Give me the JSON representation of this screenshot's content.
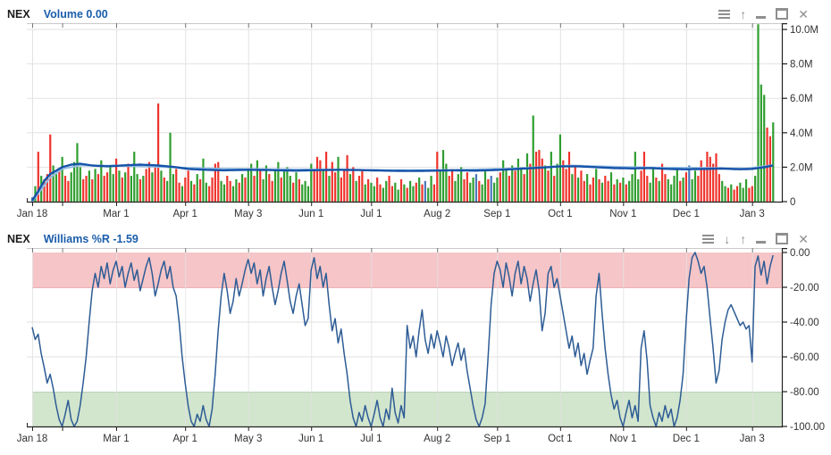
{
  "panels": [
    {
      "symbol": "NEX",
      "study": "Volume 0.00",
      "toolbar": [
        "menu",
        "move-up",
        "minimize",
        "maximize",
        "close"
      ]
    },
    {
      "symbol": "NEX",
      "study": "Williams %R -1.59",
      "toolbar": [
        "menu",
        "move-down",
        "move-up",
        "minimize",
        "maximize",
        "close"
      ]
    }
  ],
  "icons": {
    "up_glyph": "↑",
    "down_glyph": "↓",
    "close_glyph": "✕"
  },
  "colors": {
    "up_bar": "#2f9e2f",
    "down_bar": "#ef342c",
    "neutral_bar": "#4a77bb",
    "ma_line": "#1553a8",
    "ma2_line": "#96bde4",
    "wr_line": "#2d5c95",
    "overbought_band": "#f6c5c7",
    "oversold_band": "#d2e5cd",
    "band_edge_red": "#eab3b5",
    "band_edge_green": "#b9d2b4",
    "grid": "#e2e2e2",
    "axis": "#222222",
    "tick_text": "#333333",
    "study_text": "#1a5dab",
    "icon": "#8f8f8f"
  },
  "chart_data": [
    {
      "type": "bar",
      "title": "Volume",
      "current_value": "0.00",
      "ylim": [
        0,
        10.5
      ],
      "unit": "millions",
      "legend_position": "none",
      "grid": true,
      "y_ticks": {
        "values": [
          10,
          8,
          6,
          4,
          2,
          0
        ],
        "labels": [
          "10.0M",
          "8.0M",
          "6.0M",
          "4.0M",
          "2.0M",
          "0"
        ]
      },
      "x_ticks": {
        "indices": [
          0,
          28,
          51,
          72,
          93,
          113,
          135,
          155,
          176,
          197,
          218,
          240
        ],
        "labels": [
          "Jan 18",
          "Mar 1",
          "Apr 1",
          "May 3",
          "Jun 1",
          "Jul 1",
          "Aug 2",
          "Sep 1",
          "Oct 1",
          "Nov 1",
          "Dec 1",
          "Jan 3"
        ],
        "minor": [
          10
        ]
      },
      "bars": {
        "values": [
          0.25,
          0.9,
          2.9,
          1.5,
          1.3,
          1.6,
          3.9,
          2.1,
          1.6,
          1.9,
          2.6,
          1.5,
          1.2,
          1.7,
          2.3,
          3.4,
          2.0,
          1.3,
          1.5,
          1.8,
          1.3,
          1.9,
          1.6,
          2.4,
          1.5,
          1.7,
          2.1,
          1.6,
          2.5,
          1.8,
          1.4,
          1.7,
          2.2,
          1.5,
          2.9,
          1.6,
          1.3,
          1.5,
          1.9,
          2.3,
          1.7,
          2.1,
          5.7,
          1.8,
          1.4,
          1.2,
          4.0,
          1.6,
          1.9,
          1.1,
          0.9,
          1.4,
          1.8,
          1.2,
          1.0,
          1.6,
          1.3,
          2.5,
          1.1,
          0.9,
          1.4,
          2.2,
          2.3,
          1.2,
          1.0,
          1.5,
          1.2,
          0.9,
          1.3,
          1.1,
          1.6,
          1.4,
          1.8,
          2.2,
          1.5,
          2.4,
          1.9,
          1.3,
          2.1,
          1.6,
          1.2,
          1.9,
          2.3,
          1.4,
          1.8,
          2.0,
          1.5,
          1.1,
          1.7,
          1.3,
          1.0,
          1.2,
          0.9,
          2.2,
          1.8,
          2.6,
          2.4,
          1.9,
          2.9,
          1.5,
          2.3,
          1.7,
          2.6,
          1.4,
          1.9,
          2.7,
          1.6,
          2.0,
          1.2,
          1.5,
          1.8,
          1.0,
          1.3,
          1.1,
          0.9,
          1.4,
          1.0,
          0.8,
          1.2,
          1.5,
          0.9,
          1.1,
          0.7,
          1.3,
          1.0,
          0.8,
          1.2,
          0.9,
          1.1,
          1.4,
          1.0,
          1.2,
          0.8,
          1.5,
          1.0,
          2.9,
          1.8,
          3.0,
          2.2,
          1.5,
          1.9,
          1.2,
          1.6,
          2.0,
          1.3,
          1.7,
          1.1,
          1.4,
          1.6,
          1.2,
          1.0,
          1.8,
          1.3,
          1.5,
          1.1,
          1.4,
          1.7,
          2.4,
          1.9,
          1.5,
          2.1,
          1.8,
          2.5,
          2.0,
          1.6,
          2.8,
          2.2,
          5.0,
          2.9,
          3.0,
          2.5,
          2.1,
          1.8,
          2.9,
          1.5,
          2.2,
          3.9,
          2.4,
          1.9,
          2.9,
          1.6,
          2.1,
          1.4,
          1.8,
          1.2,
          1.6,
          1.0,
          1.4,
          1.9,
          1.3,
          1.1,
          1.5,
          1.2,
          1.7,
          1.0,
          1.3,
          1.1,
          1.4,
          1.0,
          1.2,
          1.6,
          2.9,
          1.3,
          1.8,
          2.9,
          1.5,
          1.1,
          1.9,
          1.4,
          1.2,
          2.2,
          1.6,
          1.3,
          1.0,
          1.5,
          1.9,
          1.2,
          1.4,
          1.7,
          2.1,
          1.3,
          1.8,
          1.5,
          2.4,
          1.9,
          2.9,
          2.6,
          2.2,
          2.8,
          1.6,
          1.2,
          0.9,
          0.8,
          1.0,
          0.7,
          0.9,
          1.1,
          0.8,
          1.3,
          0.8,
          0.9,
          1.5,
          10.3,
          6.8,
          6.2,
          4.3,
          3.8,
          4.6
        ],
        "colors": "bgrgrrrggrgrrggggrrgrgrgrrggrgrgrgggrgrrgrrgrgggrrgrrgrgrggrrrrggrrggrgrggrgrggrrggrgggrgrggggrrrgrgrrgrrrgrgrrgrggrrggrrggrgrggrgrbggrrgggrrgggrrggbrggrbggrggrgrggrgrgrrrgrgrggrrrgrgrrgrrgrgrrgrgrgrggggrrrggrgrrggggrgrbggrrrrrrrrggrgrrgggrrggggrrg"
      },
      "ma_points": [
        [
          0,
          0.05
        ],
        [
          2,
          0.6
        ],
        [
          4,
          1.2
        ],
        [
          6,
          1.6
        ],
        [
          8,
          1.8
        ],
        [
          10,
          2.0
        ],
        [
          13,
          2.15
        ],
        [
          16,
          2.2
        ],
        [
          20,
          2.1
        ],
        [
          25,
          2.05
        ],
        [
          30,
          2.1
        ],
        [
          36,
          2.15
        ],
        [
          42,
          2.1
        ],
        [
          48,
          2.0
        ],
        [
          52,
          1.9
        ],
        [
          58,
          1.85
        ],
        [
          64,
          1.82
        ],
        [
          72,
          1.85
        ],
        [
          80,
          1.83
        ],
        [
          88,
          1.8
        ],
        [
          95,
          1.83
        ],
        [
          103,
          1.85
        ],
        [
          110,
          1.83
        ],
        [
          118,
          1.8
        ],
        [
          126,
          1.78
        ],
        [
          134,
          1.8
        ],
        [
          140,
          1.82
        ],
        [
          148,
          1.8
        ],
        [
          156,
          1.85
        ],
        [
          162,
          1.9
        ],
        [
          167,
          1.95
        ],
        [
          172,
          2.0
        ],
        [
          176,
          2.05
        ],
        [
          182,
          2.05
        ],
        [
          188,
          2.0
        ],
        [
          194,
          1.95
        ],
        [
          200,
          1.93
        ],
        [
          206,
          1.95
        ],
        [
          212,
          1.9
        ],
        [
          218,
          1.88
        ],
        [
          224,
          1.9
        ],
        [
          230,
          1.92
        ],
        [
          236,
          1.88
        ],
        [
          240,
          1.9
        ],
        [
          244,
          2.0
        ],
        [
          247,
          2.1
        ]
      ],
      "ma2_points": [
        [
          0,
          0.0
        ],
        [
          3,
          0.7
        ],
        [
          6,
          1.4
        ],
        [
          10,
          1.9
        ],
        [
          16,
          2.1
        ],
        [
          30,
          2.08
        ],
        [
          45,
          2.0
        ],
        [
          60,
          1.92
        ],
        [
          80,
          1.88
        ],
        [
          100,
          1.86
        ],
        [
          120,
          1.82
        ],
        [
          140,
          1.84
        ],
        [
          160,
          1.92
        ],
        [
          172,
          2.02
        ],
        [
          180,
          2.1
        ],
        [
          195,
          2.02
        ],
        [
          210,
          1.97
        ],
        [
          225,
          1.96
        ],
        [
          238,
          1.92
        ],
        [
          244,
          2.05
        ],
        [
          247,
          2.12
        ]
      ]
    },
    {
      "type": "line",
      "title": "Williams %R",
      "current_value": -1.59,
      "ylim": [
        -100,
        0
      ],
      "grid": true,
      "bands": {
        "overbought": [
          0,
          -20
        ],
        "oversold": [
          -80,
          -100
        ]
      },
      "y_ticks": {
        "values": [
          0,
          -20,
          -40,
          -60,
          -80,
          -100
        ],
        "labels": [
          "0.00",
          "-20.00",
          "-40.00",
          "-60.00",
          "-80.00",
          "-100.00"
        ]
      },
      "x_ticks": {
        "indices": [
          0,
          28,
          51,
          72,
          93,
          113,
          135,
          155,
          176,
          197,
          218,
          240
        ],
        "labels": [
          "Jan 18",
          "Mar 1",
          "Apr 1",
          "May 3",
          "Jun 1",
          "Jul 1",
          "Aug 2",
          "Sep 1",
          "Oct 1",
          "Nov 1",
          "Dec 1",
          "Jan 3"
        ],
        "minor": [
          10
        ]
      },
      "values": [
        -43,
        -50,
        -47,
        -58,
        -66,
        -75,
        -70,
        -78,
        -88,
        -96,
        -100,
        -93,
        -85,
        -96,
        -100,
        -97,
        -88,
        -75,
        -60,
        -40,
        -22,
        -12,
        -20,
        -8,
        -15,
        -6,
        -18,
        -10,
        -5,
        -14,
        -8,
        -20,
        -12,
        -6,
        -16,
        -10,
        -22,
        -15,
        -8,
        -3,
        -12,
        -25,
        -18,
        -10,
        -5,
        -15,
        -8,
        -20,
        -25,
        -40,
        -60,
        -75,
        -88,
        -97,
        -100,
        -93,
        -97,
        -88,
        -96,
        -100,
        -90,
        -70,
        -45,
        -25,
        -12,
        -22,
        -35,
        -28,
        -15,
        -25,
        -18,
        -10,
        -4,
        -12,
        -6,
        -18,
        -10,
        -25,
        -15,
        -8,
        -20,
        -30,
        -22,
        -12,
        -5,
        -16,
        -28,
        -35,
        -25,
        -18,
        -30,
        -42,
        -38,
        -10,
        -3,
        -15,
        -8,
        -20,
        -12,
        -30,
        -45,
        -38,
        -52,
        -44,
        -58,
        -70,
        -85,
        -95,
        -100,
        -92,
        -97,
        -88,
        -95,
        -100,
        -93,
        -85,
        -95,
        -100,
        -90,
        -96,
        -78,
        -92,
        -98,
        -88,
        -95,
        -42,
        -55,
        -48,
        -60,
        -45,
        -33,
        -50,
        -58,
        -47,
        -55,
        -45,
        -52,
        -60,
        -48,
        -55,
        -65,
        -58,
        -52,
        -62,
        -55,
        -68,
        -78,
        -88,
        -96,
        -100,
        -95,
        -87,
        -60,
        -30,
        -12,
        -5,
        -10,
        -20,
        -6,
        -14,
        -25,
        -12,
        -5,
        -18,
        -8,
        -15,
        -28,
        -18,
        -10,
        -22,
        -45,
        -35,
        -12,
        -8,
        -20,
        -15,
        -25,
        -35,
        -45,
        -55,
        -48,
        -60,
        -52,
        -65,
        -58,
        -70,
        -62,
        -55,
        -25,
        -12,
        -35,
        -55,
        -70,
        -82,
        -90,
        -85,
        -95,
        -100,
        -92,
        -85,
        -95,
        -88,
        -97,
        -55,
        -45,
        -62,
        -88,
        -95,
        -100,
        -92,
        -97,
        -88,
        -95,
        -90,
        -100,
        -95,
        -85,
        -70,
        -40,
        -15,
        -3,
        0,
        -5,
        -12,
        -8,
        -20,
        -38,
        -55,
        -75,
        -68,
        -50,
        -40,
        -33,
        -30,
        -34,
        -38,
        -42,
        -40,
        -44,
        -42,
        -63,
        -8,
        -2,
        -13,
        -5,
        -18,
        -8,
        -1.59
      ]
    }
  ]
}
